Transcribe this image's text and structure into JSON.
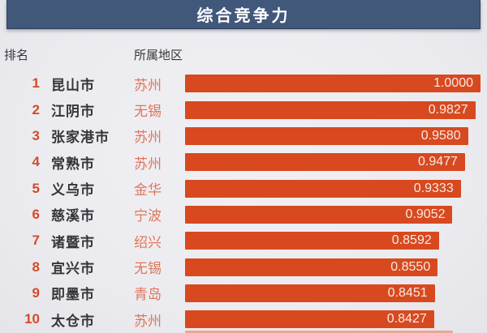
{
  "title": "综合竞争力",
  "columns": {
    "rank": "排名",
    "region": "所属地区"
  },
  "colors": {
    "header_bg": "#41587b",
    "bar": "#d8491f",
    "rank_text": "#d34b28",
    "city_text": "#35353a",
    "region_text": "#e0755a",
    "value_text": "#f6ebe3",
    "background": "#ededf1"
  },
  "chart_data": {
    "type": "bar",
    "orientation": "horizontal",
    "title": "综合竞争力",
    "xlim": [
      0,
      1
    ],
    "value_column": "综合竞争力",
    "rows": [
      {
        "rank": "1",
        "city": "昆山市",
        "region": "苏州",
        "value": 1.0,
        "value_label": "1.0000"
      },
      {
        "rank": "2",
        "city": "江阴市",
        "region": "无锡",
        "value": 0.9827,
        "value_label": "0.9827"
      },
      {
        "rank": "3",
        "city": "张家港市",
        "region": "苏州",
        "value": 0.958,
        "value_label": "0.9580"
      },
      {
        "rank": "4",
        "city": "常熟市",
        "region": "苏州",
        "value": 0.9477,
        "value_label": "0.9477"
      },
      {
        "rank": "5",
        "city": "义乌市",
        "region": "金华",
        "value": 0.9333,
        "value_label": "0.9333"
      },
      {
        "rank": "6",
        "city": "慈溪市",
        "region": "宁波",
        "value": 0.9052,
        "value_label": "0.9052"
      },
      {
        "rank": "7",
        "city": "诸暨市",
        "region": "绍兴",
        "value": 0.8592,
        "value_label": "0.8592"
      },
      {
        "rank": "8",
        "city": "宜兴市",
        "region": "无锡",
        "value": 0.855,
        "value_label": "0.8550"
      },
      {
        "rank": "9",
        "city": "即墨市",
        "region": "青岛",
        "value": 0.8451,
        "value_label": "0.8451"
      },
      {
        "rank": "10",
        "city": "太仓市",
        "region": "苏州",
        "value": 0.8427,
        "value_label": "0.8427"
      }
    ]
  }
}
